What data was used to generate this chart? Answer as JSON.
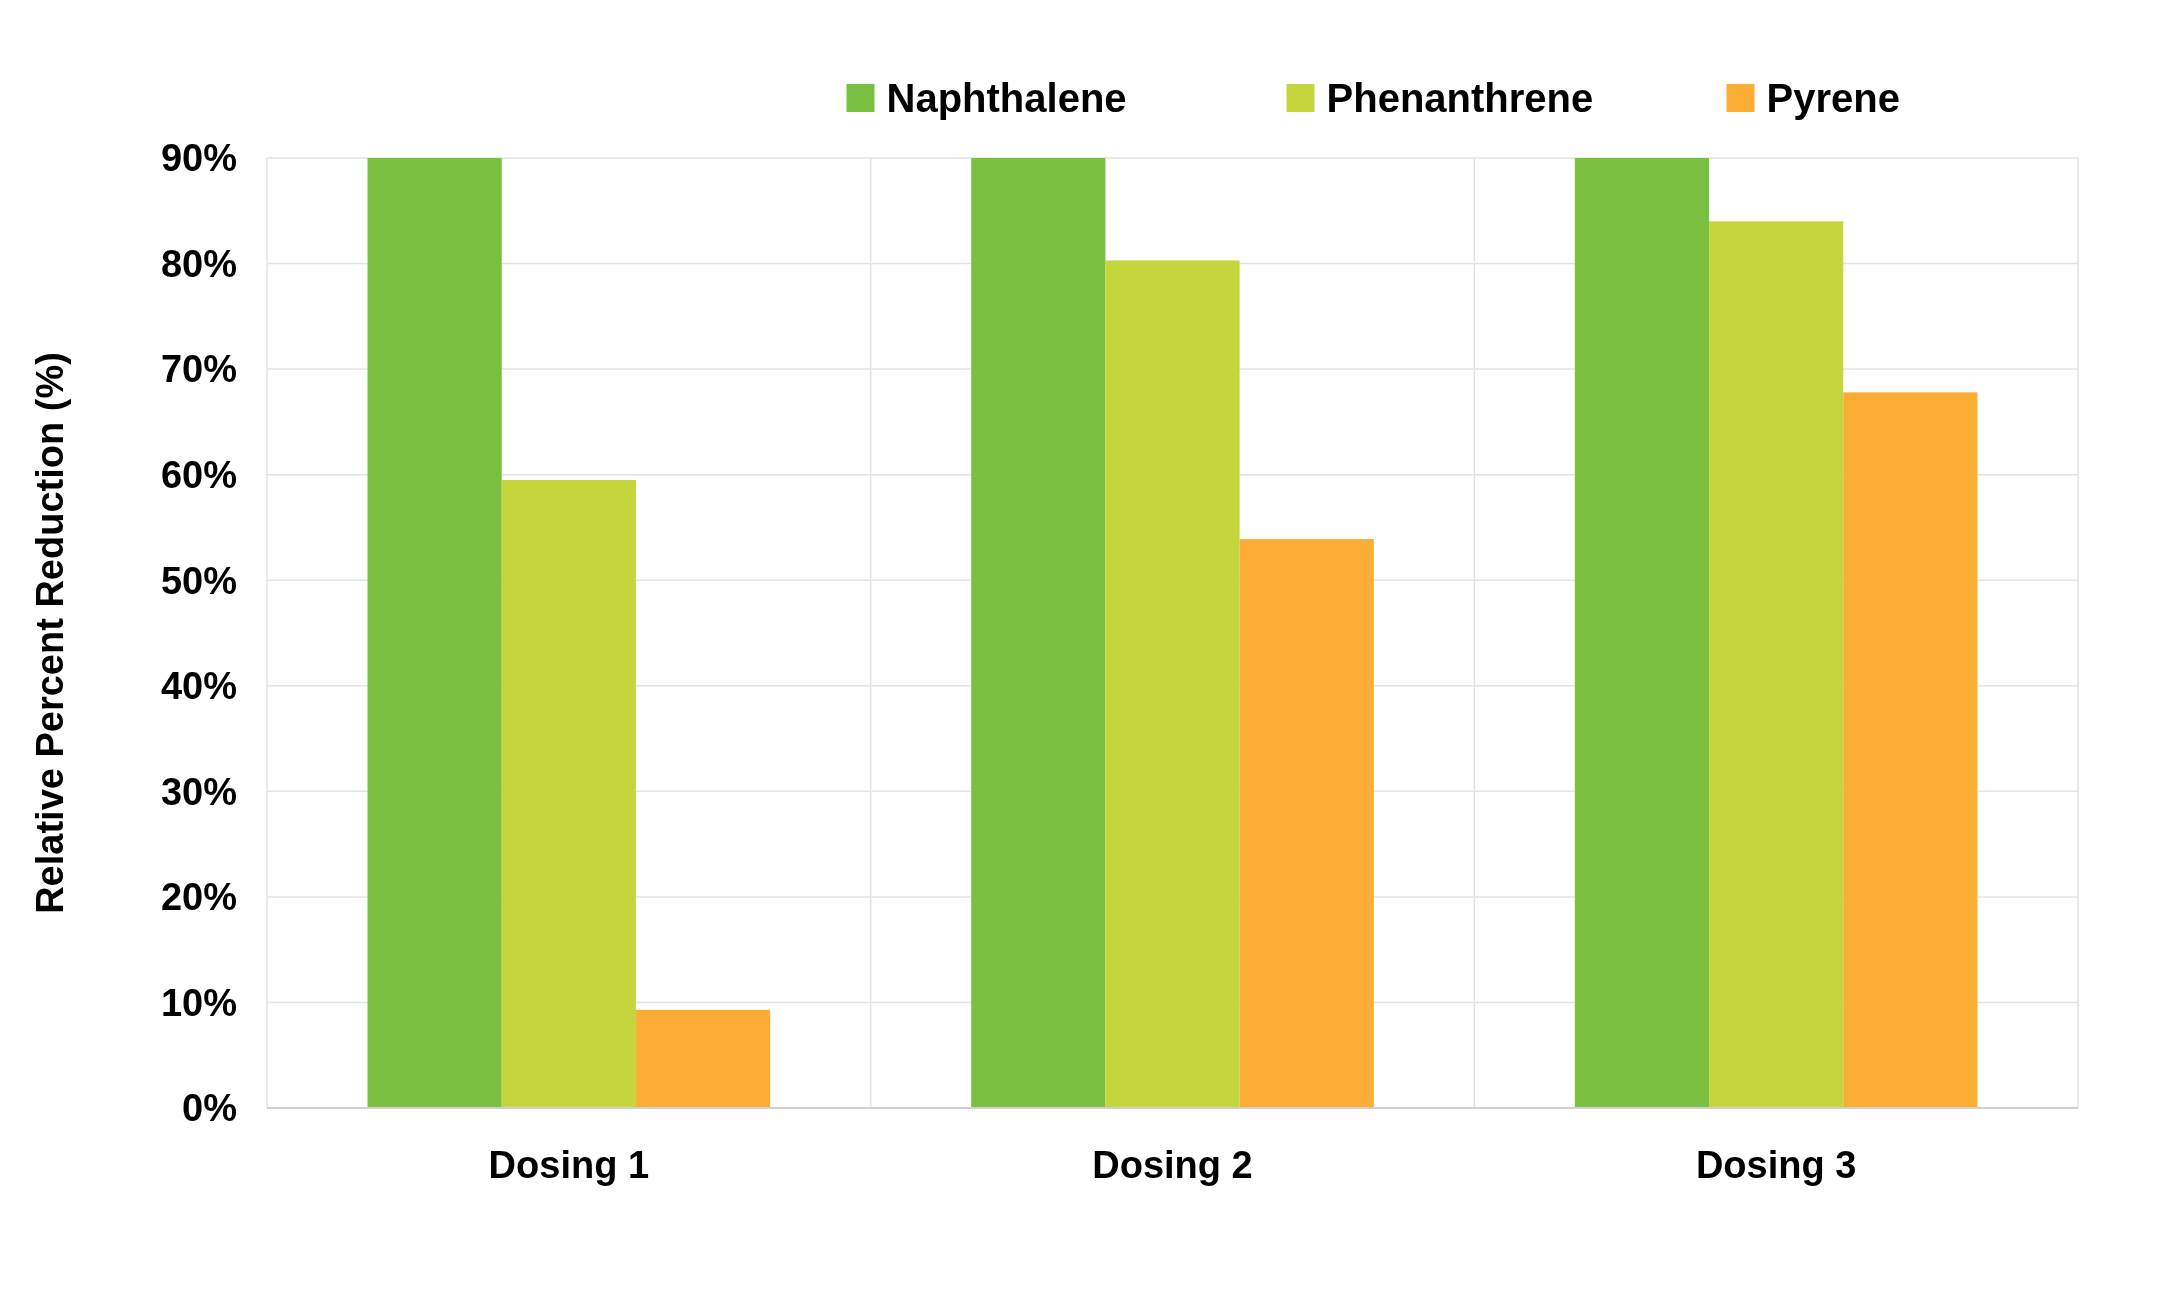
{
  "chart_data": {
    "type": "bar",
    "ylabel": "Relative Percent Reduction (%)",
    "categories": [
      "Dosing 1",
      "Dosing 2",
      "Dosing 3"
    ],
    "series": [
      {
        "name": "Naphthalene",
        "color": "#7ac142",
        "values": [
          90,
          90,
          90
        ]
      },
      {
        "name": "Phenanthrene",
        "color": "#c5d63d",
        "values": [
          59.5,
          80.3,
          84.0
        ]
      },
      {
        "name": "Pyrene",
        "color": "#fbad36",
        "values": [
          9.3,
          53.9,
          67.8
        ]
      }
    ],
    "ylim": [
      0,
      90
    ],
    "yticks": [
      {
        "value": 0,
        "label": "0%"
      },
      {
        "value": 10,
        "label": "10%"
      },
      {
        "value": 20,
        "label": "20%"
      },
      {
        "value": 30,
        "label": "30%"
      },
      {
        "value": 40,
        "label": "40%"
      },
      {
        "value": 50,
        "label": "50%"
      },
      {
        "value": 60,
        "label": "60%"
      },
      {
        "value": 70,
        "label": "70%"
      },
      {
        "value": 80,
        "label": "80%"
      },
      {
        "value": 90,
        "label": "90%"
      }
    ],
    "grid": true,
    "legend": "top"
  }
}
